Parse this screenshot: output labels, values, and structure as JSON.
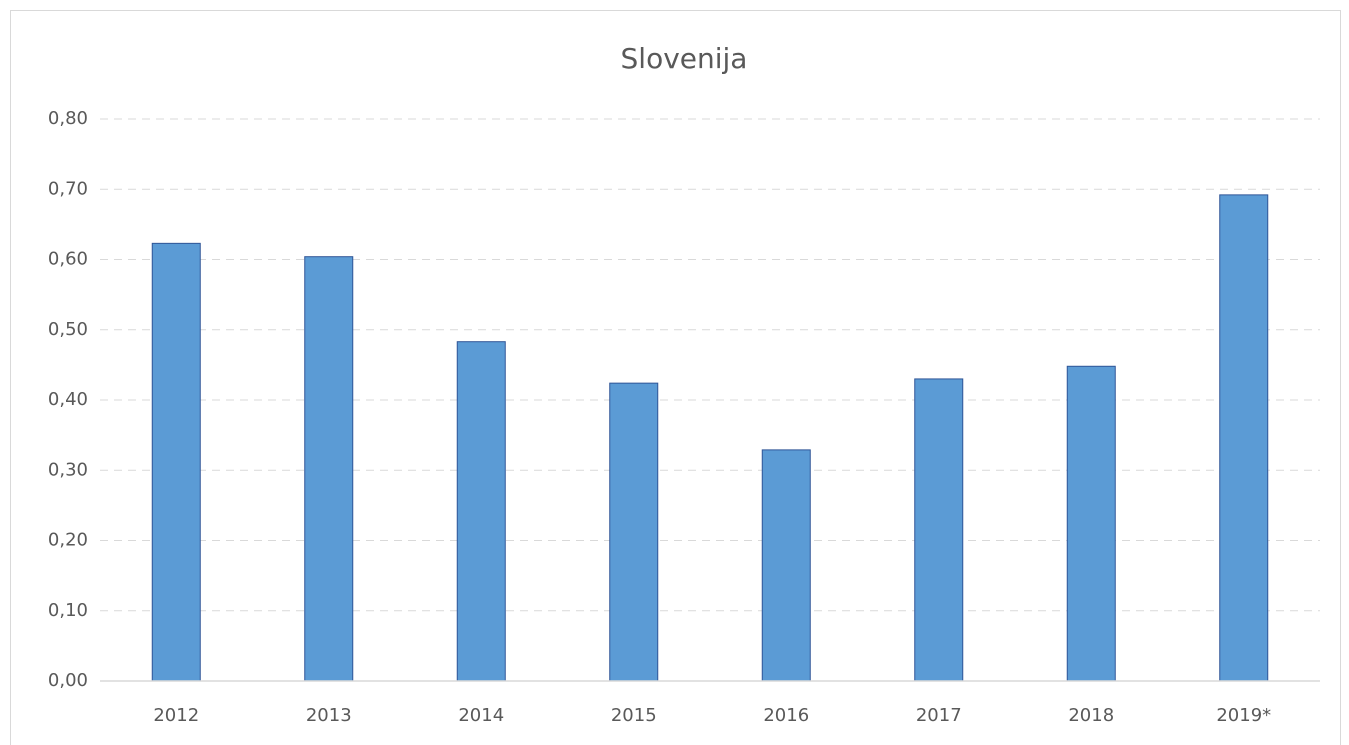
{
  "chart_data": {
    "type": "bar",
    "title": "Slovenija",
    "categories": [
      "2012",
      "2013",
      "2014",
      "2015",
      "2016",
      "2017",
      "2018",
      "2019*"
    ],
    "values": [
      0.623,
      0.604,
      0.483,
      0.424,
      0.329,
      0.43,
      0.448,
      0.692
    ],
    "color": "#5b9bd5",
    "ylim": [
      0,
      0.8
    ],
    "yticks": [
      {
        "value": 0,
        "label": "0,00"
      },
      {
        "value": 0.1,
        "label": "0,10"
      },
      {
        "value": 0.2,
        "label": "0,20"
      },
      {
        "value": 0.3,
        "label": "0,30"
      },
      {
        "value": 0.4,
        "label": "0,40"
      },
      {
        "value": 0.5,
        "label": "0,50"
      },
      {
        "value": 0.6,
        "label": "0,60"
      },
      {
        "value": 0.7,
        "label": "0,70"
      },
      {
        "value": 0.8,
        "label": "0,80"
      }
    ],
    "grid": true
  }
}
